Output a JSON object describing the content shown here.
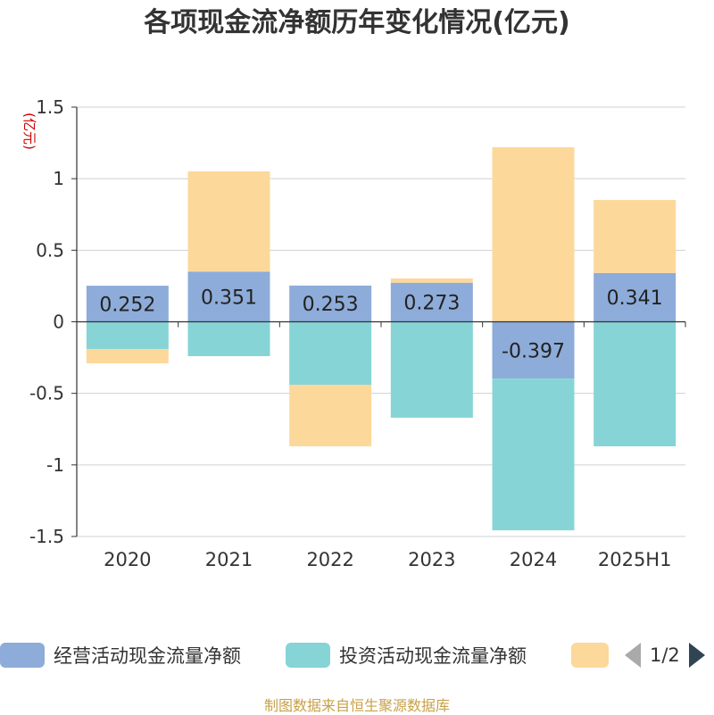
{
  "chart_data": {
    "type": "bar",
    "stacked": true,
    "title": "各项现金流净额历年变化情况(亿元)",
    "ylabel": "(亿元)",
    "ylim": [
      -1.5,
      1.5
    ],
    "yticks": [
      1.5,
      1,
      0.5,
      0,
      -0.5,
      -1,
      -1.5
    ],
    "ytick_labels": [
      "1.5",
      "1",
      "0.5",
      "0",
      "-0.5",
      "-1",
      "-1.5"
    ],
    "grid": true,
    "legend_position": "bottom",
    "categories": [
      "2020",
      "2021",
      "2022",
      "2023",
      "2024",
      "2025H1"
    ],
    "series": [
      {
        "name": "经营活动现金流量净额",
        "color": "#8eacd9",
        "values": [
          0.252,
          0.351,
          0.253,
          0.273,
          -0.397,
          0.341
        ],
        "labels": [
          "0.252",
          "0.351",
          "0.253",
          "0.273",
          "-0.397",
          "0.341"
        ]
      },
      {
        "name": "投资活动现金流量净额",
        "color": "#86d4d6",
        "values": [
          -0.19,
          -0.24,
          -0.44,
          -0.67,
          -1.06,
          -0.87
        ]
      },
      {
        "name": "",
        "color": "#fdd89b",
        "values": [
          -0.1,
          0.7,
          -0.43,
          0.03,
          1.22,
          0.51
        ]
      }
    ]
  },
  "legend": {
    "items": [
      "经营活动现金流量净额",
      "投资活动现金流量净额",
      ""
    ],
    "page": "1/2"
  },
  "source": "制图数据来自恒生聚源数据库"
}
